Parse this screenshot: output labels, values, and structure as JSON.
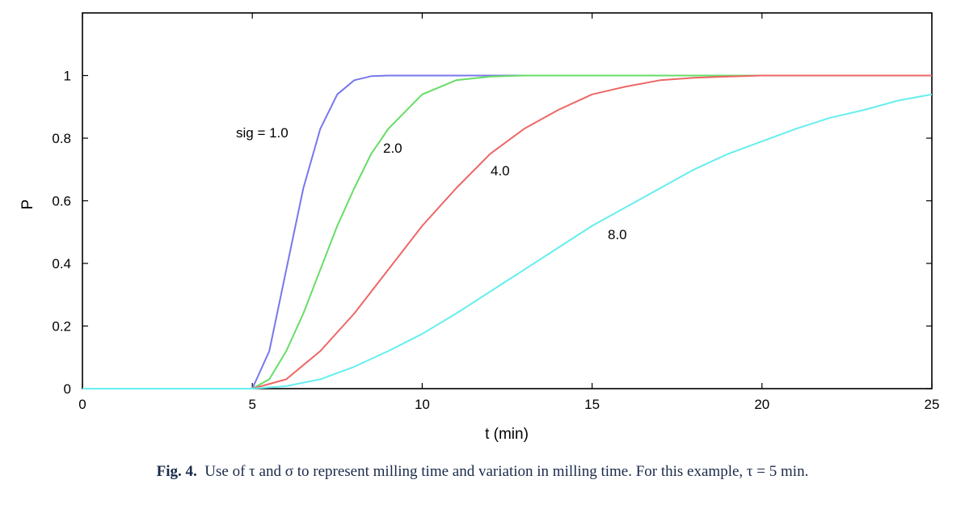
{
  "chart_data": {
    "type": "line",
    "xlabel": "t (min)",
    "ylabel": "P",
    "xlim": [
      0,
      25
    ],
    "ylim": [
      0,
      1.2
    ],
    "xticks": [
      0,
      5,
      10,
      15,
      20,
      25
    ],
    "yticks": [
      0,
      0.2,
      0.4,
      0.6,
      0.8,
      1
    ],
    "xtick_labels": [
      "0",
      "5",
      "10",
      "15",
      "20",
      "25"
    ],
    "ytick_labels": [
      "0",
      "0.2",
      "0.4",
      "0.6",
      "0.8",
      "1"
    ],
    "grid": false,
    "colors": [
      "#7777ee",
      "#66dd66",
      "#ee6666",
      "#66eeee"
    ],
    "series": [
      {
        "label": "sig = 1.0",
        "x": [
          0,
          5,
          5.5,
          6,
          6.5,
          7,
          7.5,
          8,
          8.5,
          9,
          10,
          25
        ],
        "y": [
          0,
          0,
          0.12,
          0.38,
          0.64,
          0.83,
          0.94,
          0.985,
          0.998,
          1.0,
          1.0,
          1.0
        ]
      },
      {
        "label": "2.0",
        "x": [
          0,
          5,
          5.5,
          6,
          6.5,
          7,
          7.5,
          8,
          8.5,
          9,
          10,
          11,
          12,
          13,
          25
        ],
        "y": [
          0,
          0,
          0.03,
          0.12,
          0.24,
          0.38,
          0.52,
          0.64,
          0.75,
          0.83,
          0.94,
          0.985,
          0.997,
          1.0,
          1.0
        ]
      },
      {
        "label": "4.0",
        "x": [
          0,
          5,
          6,
          7,
          8,
          9,
          10,
          11,
          12,
          13,
          14,
          15,
          16,
          17,
          18,
          19,
          20,
          25
        ],
        "y": [
          0,
          0,
          0.03,
          0.12,
          0.24,
          0.38,
          0.52,
          0.64,
          0.75,
          0.83,
          0.89,
          0.94,
          0.965,
          0.985,
          0.993,
          0.997,
          1.0,
          1.0
        ]
      },
      {
        "label": "8.0",
        "x": [
          0,
          5,
          6,
          7,
          8,
          9,
          10,
          11,
          12,
          13,
          14,
          15,
          16,
          17,
          18,
          19,
          20,
          21,
          22,
          23,
          24,
          25
        ],
        "y": [
          0,
          0,
          0.008,
          0.03,
          0.07,
          0.12,
          0.175,
          0.24,
          0.31,
          0.38,
          0.45,
          0.52,
          0.58,
          0.64,
          0.7,
          0.75,
          0.79,
          0.83,
          0.865,
          0.89,
          0.92,
          0.94
        ]
      }
    ]
  },
  "caption": {
    "fig_num": "Fig. 4.",
    "text": "Use of τ and σ to represent milling time and variation in milling time. For this example, τ = 5 min."
  }
}
